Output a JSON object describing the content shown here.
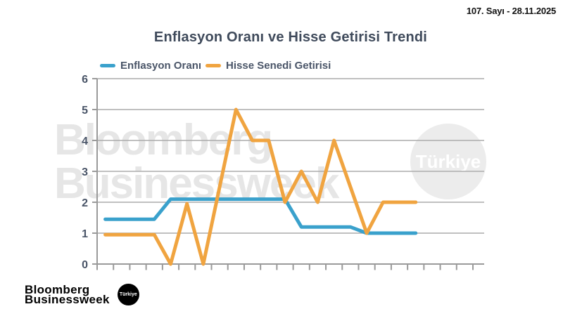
{
  "header": {
    "issue_label": "107. Sayı - 28.11.2025"
  },
  "chart": {
    "title": "Enflasyon Oranı ve Hisse Getirisi Trendi"
  },
  "chart_data": {
    "type": "line",
    "title": "Enflasyon Oranı ve Hisse Getirisi Trendi",
    "point_count": 20,
    "x_tick_labels_shown": false,
    "series": [
      {
        "name": "Enflasyon Oranı",
        "color": "#3AA1CC",
        "values": [
          1.45,
          1.45,
          1.45,
          1.45,
          2.1,
          2.1,
          2.1,
          2.1,
          2.1,
          2.1,
          2.1,
          2.1,
          1.2,
          1.2,
          1.2,
          1.2,
          1.0,
          1.0,
          1.0,
          1.0
        ]
      },
      {
        "name": "Hisse Senedi Getirisi",
        "color": "#F0A440",
        "values": [
          0.95,
          0.95,
          0.95,
          0.95,
          0,
          1.95,
          0,
          2.5,
          5,
          4,
          4,
          2,
          3,
          2,
          4,
          2.5,
          1,
          2,
          2,
          2
        ]
      }
    ],
    "ylim": [
      0,
      6
    ],
    "yticks": [
      0,
      1,
      2,
      3,
      4,
      5,
      6
    ],
    "grid": true,
    "legend_position": "top-left",
    "grid_color": "#ababab",
    "axis_color": "#9a9a9a"
  },
  "watermark": {
    "line1": "Bloomberg",
    "line2": "Businessweek",
    "badge": "Türkiye"
  },
  "footer_logo": {
    "line1": "Bloomberg",
    "line2": "Businessweek",
    "badge": "Türkiye"
  }
}
